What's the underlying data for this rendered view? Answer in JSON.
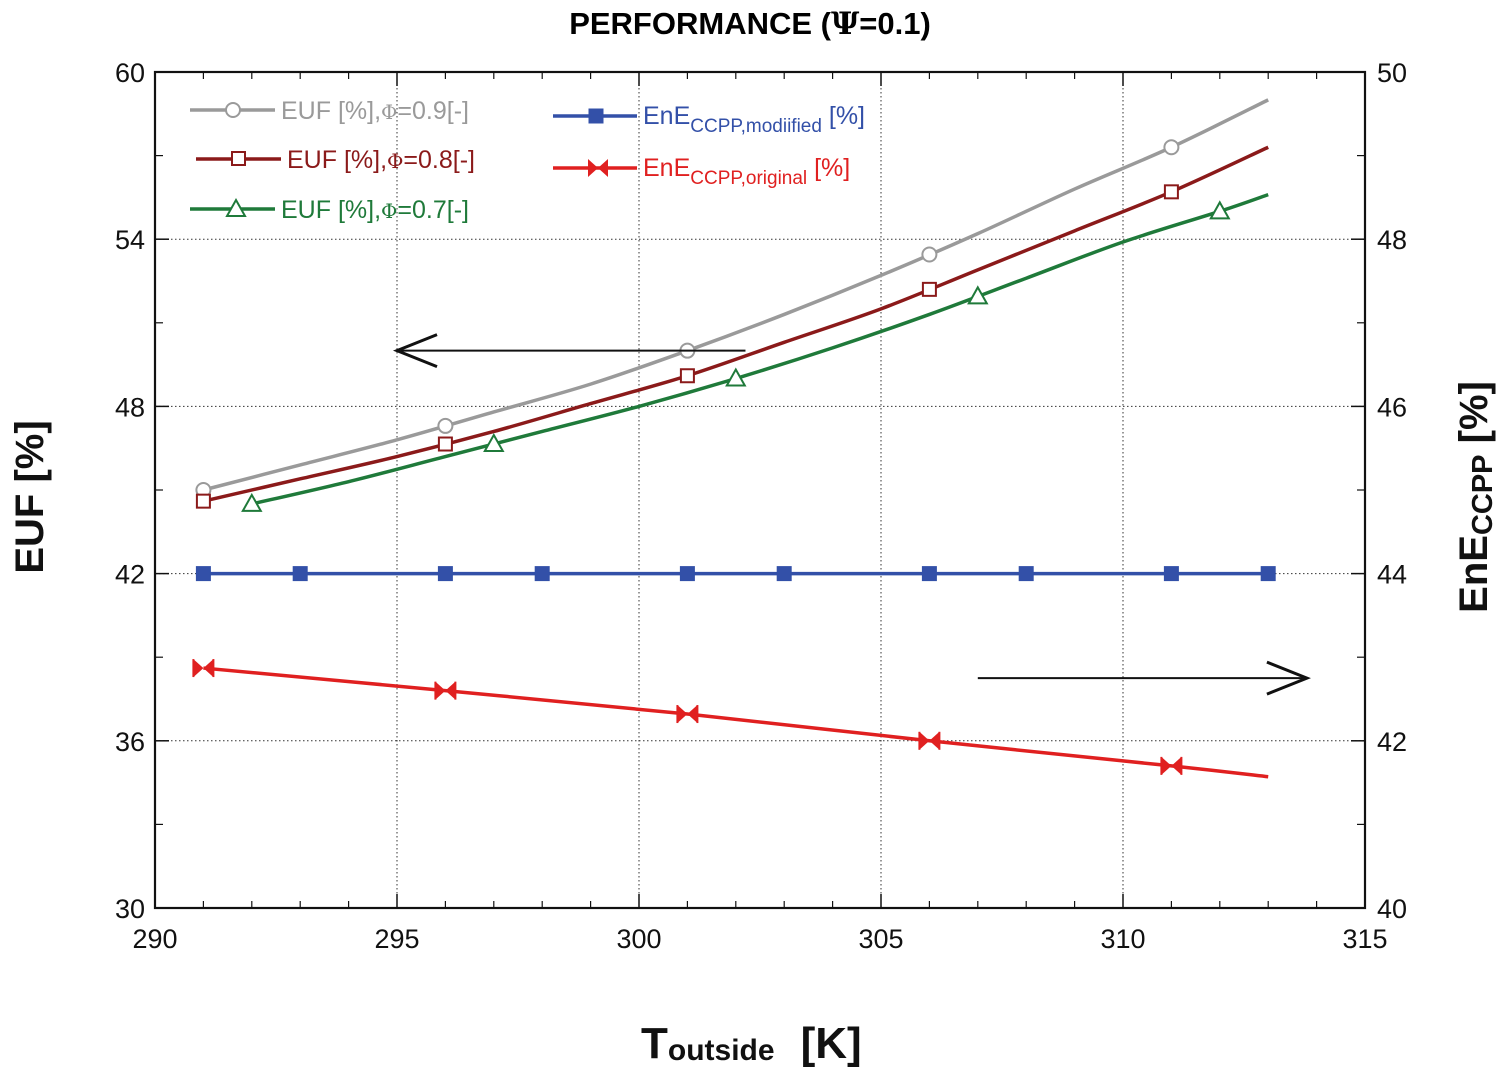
{
  "chart_data": {
    "type": "line",
    "title_prefix": "PERFORMANCE (",
    "title_symbol": "Ψ",
    "title_suffix": "=0.1)",
    "xlabel_main": "T",
    "xlabel_sub": "outside",
    "xlabel_unit": "[K]",
    "ylabel_left": "EUF [%]",
    "ylabel_right_main": "EnE",
    "ylabel_right_sub": "CCPP",
    "ylabel_right_unit": " [%]",
    "xlim": [
      290,
      315
    ],
    "ylim_left": [
      30,
      60
    ],
    "ylim_right": [
      40,
      50
    ],
    "x_ticks": [
      290,
      295,
      300,
      305,
      310,
      315
    ],
    "y_left_ticks": [
      30,
      36,
      42,
      48,
      54,
      60
    ],
    "y_right_ticks": [
      40,
      42,
      44,
      46,
      48,
      50
    ],
    "grid": true,
    "series": [
      {
        "name": "EUF [%],Φ=0.9[-]",
        "legend_parts": [
          "EUF [%],",
          "Φ",
          "=0.9[-]"
        ],
        "axis": "left",
        "color": "#9a9a9a",
        "marker": "circle",
        "x": [
          291,
          293,
          295,
          297,
          299,
          301,
          303,
          305,
          307,
          309,
          311,
          313
        ],
        "y": [
          45.0,
          45.9,
          46.8,
          47.8,
          48.8,
          50.0,
          51.3,
          52.7,
          54.2,
          55.8,
          57.3,
          59.0
        ],
        "marker_x": [
          291,
          296,
          301,
          306,
          311
        ]
      },
      {
        "name": "EUF [%],Φ=0.8[-]",
        "legend_parts": [
          "EUF [%],",
          "Φ",
          "=0.8[-]"
        ],
        "axis": "left",
        "color": "#8b1a1a",
        "marker": "square",
        "x": [
          291,
          293,
          295,
          297,
          299,
          301,
          303,
          305,
          307,
          309,
          311,
          313
        ],
        "y": [
          44.6,
          45.4,
          46.2,
          47.1,
          48.1,
          49.1,
          50.3,
          51.5,
          52.9,
          54.3,
          55.7,
          57.3
        ],
        "marker_x": [
          291,
          296,
          301,
          306,
          311
        ]
      },
      {
        "name": "EUF [%],Φ=0.7[-]",
        "legend_parts": [
          "EUF [%],",
          "Φ",
          "=0.7[-]"
        ],
        "axis": "left",
        "color": "#1f7a3a",
        "marker": "triangle",
        "x": [
          292,
          294,
          296,
          298,
          300,
          302,
          304,
          306,
          308,
          310,
          312,
          313
        ],
        "y": [
          44.5,
          45.3,
          46.2,
          47.1,
          48.0,
          49.0,
          50.1,
          51.3,
          52.6,
          53.9,
          55.0,
          55.6
        ],
        "marker_x": [
          292,
          297,
          302,
          307,
          312
        ]
      },
      {
        "name": "EnE CCPP,modiified [%]",
        "legend_main": "EnE",
        "legend_sub": "CCPP,modiified",
        "legend_unit": " [%]",
        "axis": "right",
        "color": "#3350a8",
        "marker": "filled-square",
        "x": [
          291,
          293,
          296,
          298,
          301,
          303,
          306,
          308,
          311,
          313
        ],
        "y": [
          44.0,
          44.0,
          44.0,
          44.0,
          44.0,
          44.0,
          44.0,
          44.0,
          44.0,
          44.0
        ],
        "marker_x": [
          291,
          293,
          296,
          298,
          301,
          303,
          306,
          308,
          311,
          313
        ]
      },
      {
        "name": "EnE CCPP,original [%]",
        "legend_main": "EnE",
        "legend_sub": "CCPP,original",
        "legend_unit": " [%]",
        "axis": "right",
        "color": "#e02020",
        "marker": "bowtie",
        "x": [
          291,
          296,
          301,
          306,
          311,
          313
        ],
        "y": [
          42.87,
          42.6,
          42.32,
          42.0,
          41.7,
          41.57
        ],
        "marker_x": [
          291,
          296,
          301,
          306,
          311
        ]
      }
    ],
    "annotations": [
      {
        "type": "arrow",
        "direction": "left",
        "refers_to": "left axis",
        "x_from": 302.2,
        "x_to": 295.0,
        "y": 50.0,
        "axis": "left"
      },
      {
        "type": "arrow",
        "direction": "right",
        "refers_to": "right axis",
        "x_from": 307.0,
        "x_to": 313.8,
        "y": 42.75,
        "axis": "right"
      }
    ]
  }
}
